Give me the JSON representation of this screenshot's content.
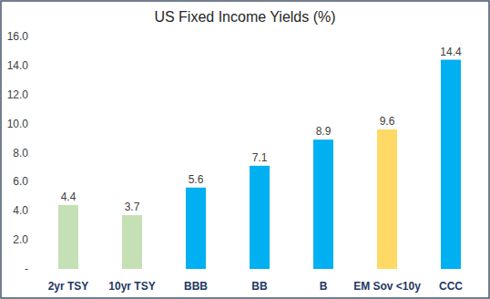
{
  "chart_data": {
    "type": "bar",
    "title": "US Fixed Income Yields (%)",
    "categories": [
      "2yr TSY",
      "10yr TSY",
      "BBB",
      "BB",
      "B",
      "EM Sov <10y",
      "CCC"
    ],
    "values": [
      4.4,
      3.7,
      5.6,
      7.1,
      8.9,
      9.6,
      14.4
    ],
    "colors": [
      "#c5e0b4",
      "#c5e0b4",
      "#00b0f0",
      "#00b0f0",
      "#00b0f0",
      "#ffd966",
      "#00b0f0"
    ],
    "ylim": [
      0,
      16
    ],
    "yticks": [
      {
        "value": 0,
        "label": "-"
      },
      {
        "value": 2,
        "label": "2.0"
      },
      {
        "value": 4,
        "label": "4.0"
      },
      {
        "value": 6,
        "label": "6.0"
      },
      {
        "value": 8,
        "label": "8.0"
      },
      {
        "value": 10,
        "label": "10.0"
      },
      {
        "value": 12,
        "label": "12.0"
      },
      {
        "value": 14,
        "label": "14.0"
      },
      {
        "value": 16,
        "label": "16.0"
      }
    ],
    "grid": false,
    "data_labels": true
  }
}
